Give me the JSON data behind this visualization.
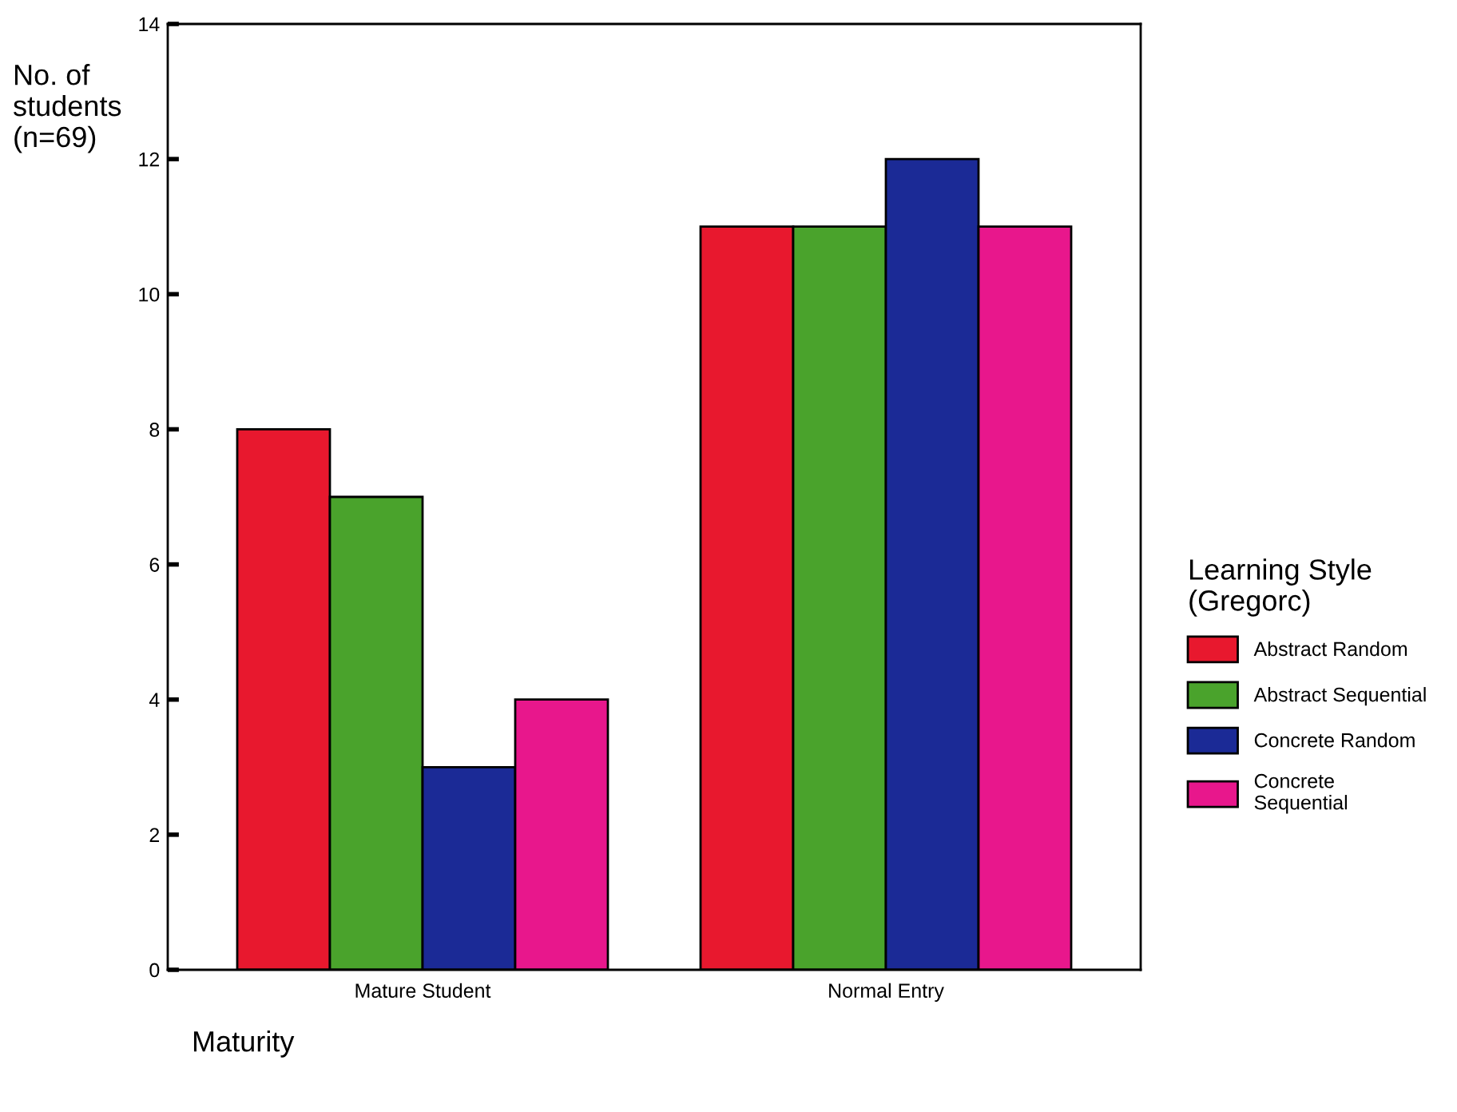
{
  "chart_data": {
    "type": "bar",
    "categories": [
      "Mature Student",
      "Normal Entry"
    ],
    "series": [
      {
        "name": "Abstract Random",
        "color": "#e8182e",
        "values": [
          8,
          11
        ]
      },
      {
        "name": "Abstract Sequential",
        "color": "#4aa32c",
        "values": [
          7,
          11
        ]
      },
      {
        "name": "Concrete Random",
        "color": "#1b2a96",
        "values": [
          3,
          12
        ]
      },
      {
        "name": "Concrete\nSequential",
        "color": "#e8178c",
        "values": [
          4,
          11
        ]
      }
    ],
    "ylabel": "No. of\nstudents\n(n=69)",
    "xlabel": "Maturity",
    "legend_title": "Learning Style\n(Gregorc)",
    "ylim": [
      0,
      14
    ],
    "yticks": [
      0,
      2,
      4,
      6,
      8,
      10,
      12,
      14
    ],
    "grid": false,
    "legend": "right"
  }
}
